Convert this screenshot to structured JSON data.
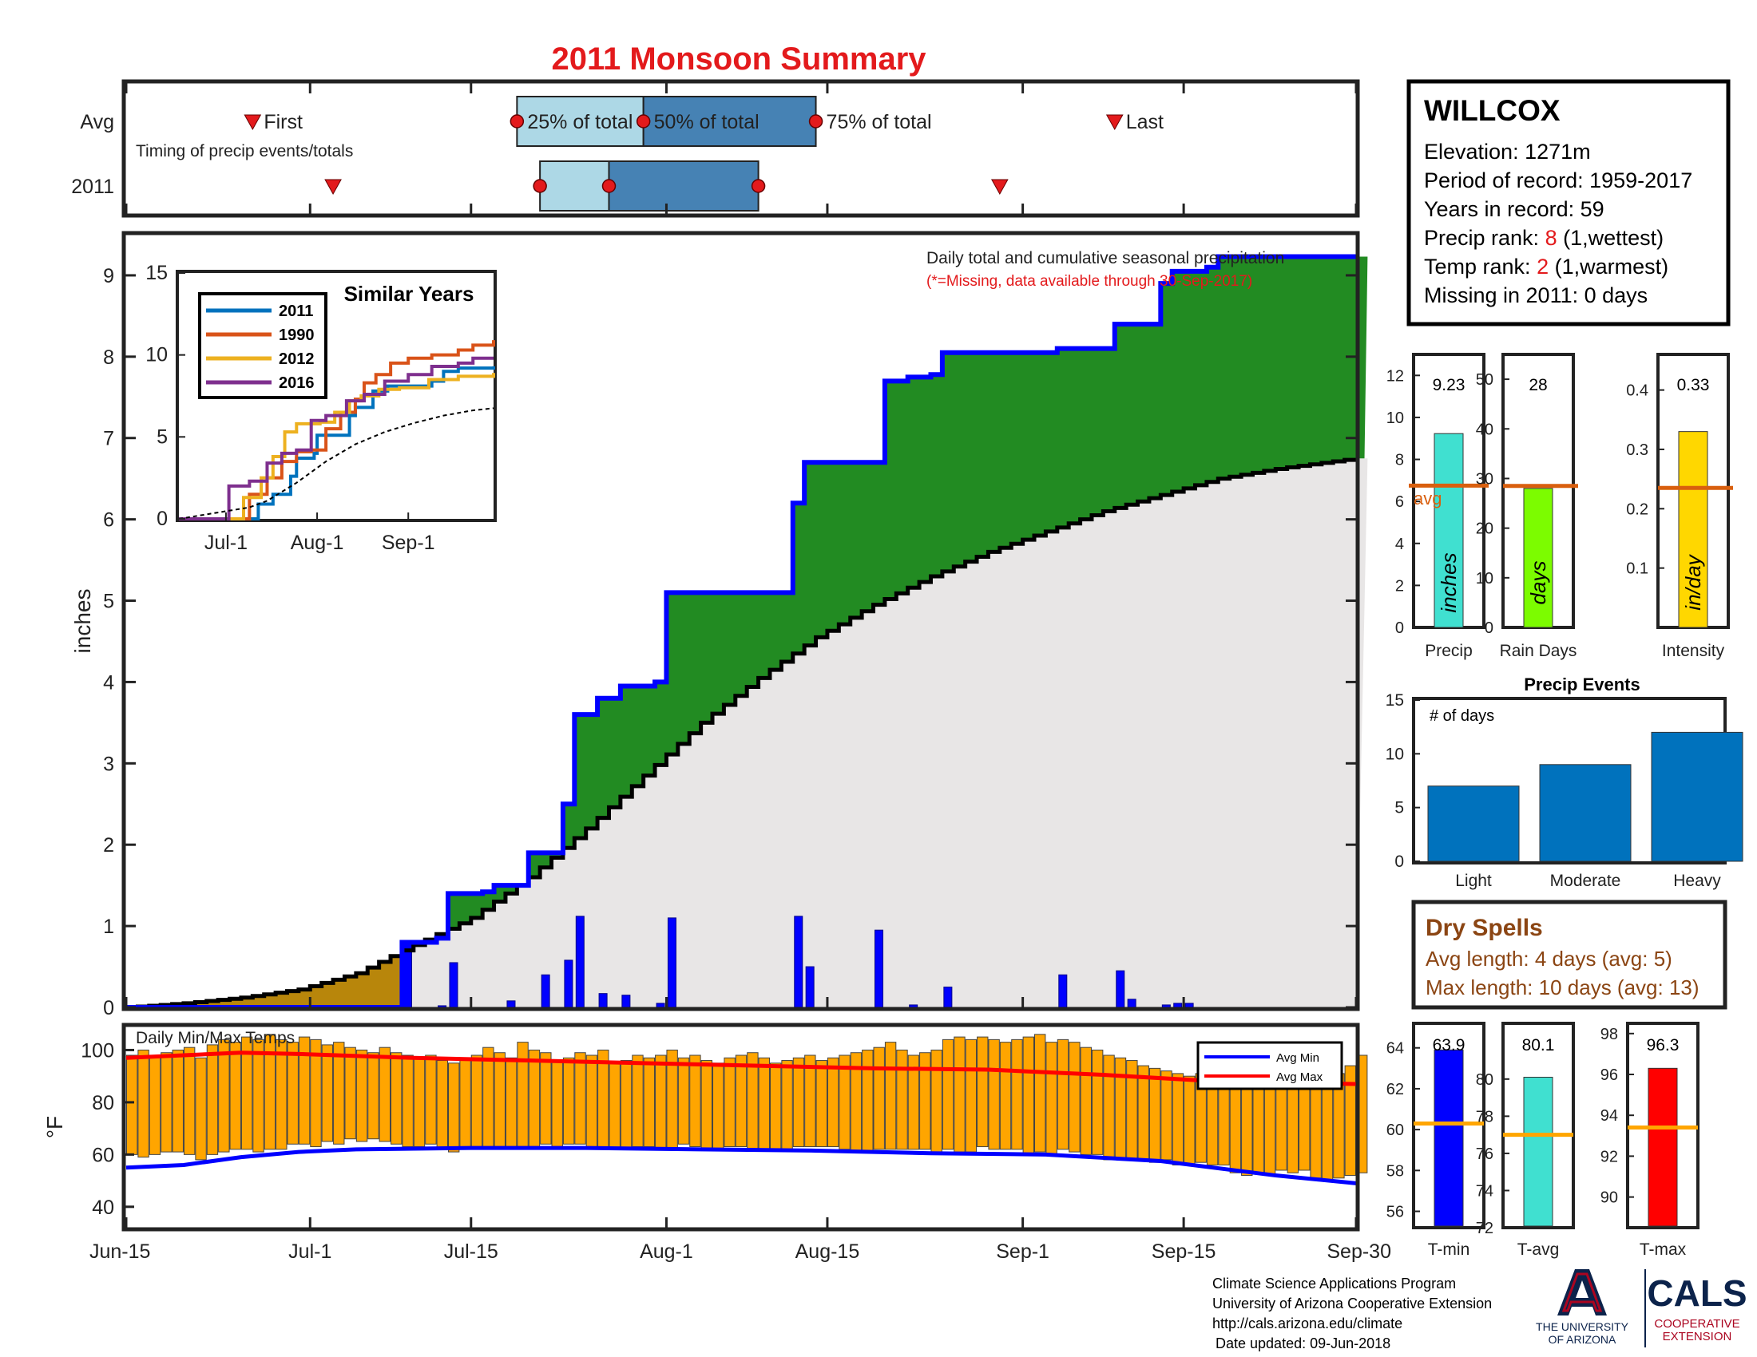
{
  "header": {
    "title": "2011 Monsoon Summary"
  },
  "timing_panel": {
    "row_labels": [
      "Avg",
      "2011"
    ],
    "caption": "Timing of precip events/totals",
    "avg_labels": {
      "first": "First",
      "p25": "25% of total",
      "p50": "50% of total",
      "p75": "75% of total",
      "last": "Last"
    },
    "avg_days": {
      "first": 11,
      "p25": 34,
      "p50": 45,
      "p75": 60,
      "last": 86
    },
    "year_days": {
      "first": 18,
      "p25": 36,
      "p50": 42,
      "p75": 55,
      "last": 76
    }
  },
  "station": {
    "name": "WILLCOX",
    "elevation": "Elevation: 1271m",
    "period": "Period of record: 1959-2017",
    "years": "Years in record: 59",
    "precip_rank_label": "Precip rank: ",
    "precip_rank_value": "8",
    "precip_rank_note": " (1,wettest)",
    "temp_rank_label": "Temp rank: ",
    "temp_rank_value": "2",
    "temp_rank_note": " (1,warmest)",
    "missing": "Missing in 2011: 0 days"
  },
  "main_chart": {
    "ylabel": "inches",
    "subtitle": "Daily total and cumulative seasonal precipitation",
    "note": "(*=Missing, data available through 30-Sep-2017)"
  },
  "inset": {
    "title": "Similar Years"
  },
  "mini_bars": [
    {
      "label": "Precip",
      "unit": "inches",
      "value": "9.23"
    },
    {
      "label": "Rain Days",
      "unit": "days",
      "value": "28"
    },
    {
      "label": "Intensity",
      "unit": "in/day",
      "value": "0.33"
    }
  ],
  "avg_marker_label": "avg",
  "precip_events": {
    "title": "Precip Events",
    "ylabel": "# of days"
  },
  "dry_spells": {
    "title": "Dry Spells",
    "avg": "Avg length: 4 days (avg: 5)",
    "max": "Max length: 10 days (avg: 13)"
  },
  "temp_chart": {
    "title": "Daily Min/Max Temps",
    "ylabel": "°F"
  },
  "temp_bars": [
    {
      "label": "T-min",
      "value": "63.9"
    },
    {
      "label": "T-avg",
      "value": "80.1"
    },
    {
      "label": "T-max",
      "value": "96.3"
    }
  ],
  "footer": {
    "line1": "Climate Science Applications Program",
    "line2": "University of Arizona Cooperative Extension",
    "line3": "http://cals.arizona.edu/climate",
    "line4": "Date updated: 09-Jun-2018"
  },
  "logos": {
    "ua_line1": "THE UNIVERSITY",
    "ua_line2": "OF ARIZONA",
    "cals": "CALS",
    "cals_line1": "COOPERATIVE",
    "cals_line2": "EXTENSION"
  },
  "colors": {
    "title_red": "#e31a1c",
    "cumulative_2011": "#0000ff",
    "above_avg_fill": "#228b22",
    "avg_fill": "#e8e6e6",
    "early_fill": "#b8860b",
    "daily_bar": "#0000ff",
    "temp_bar": "#ffa500",
    "avg_max_line": "#ff0000",
    "avg_min_line": "#0000ff",
    "avg_line_orange": "#d95f0e",
    "events_bar": "#0072bd",
    "dry_spells_text": "#8b4513"
  },
  "chart_data": [
    {
      "type": "area",
      "title": "",
      "subtitle": "Daily total and cumulative seasonal precipitation",
      "xlabel": "",
      "ylabel": "inches",
      "x_ticks": [
        "Jun-15",
        "Jul-1",
        "Jul-15",
        "Aug-1",
        "Aug-15",
        "Sep-1",
        "Sep-15",
        "Sep-30"
      ],
      "x_tick_days": [
        0,
        16,
        30,
        47,
        61,
        78,
        92,
        107
      ],
      "xlim_days": [
        0,
        107
      ],
      "ylim": [
        0,
        9.5
      ],
      "y_ticks": [
        0,
        1,
        2,
        3,
        4,
        5,
        6,
        7,
        8,
        9
      ],
      "cumulative_2011": [
        [
          0,
          0
        ],
        [
          23,
          0
        ],
        [
          24,
          0.8
        ],
        [
          27,
          0.85
        ],
        [
          28,
          1.4
        ],
        [
          31,
          1.42
        ],
        [
          32,
          1.5
        ],
        [
          35,
          1.9
        ],
        [
          38,
          2.5
        ],
        [
          39,
          3.6
        ],
        [
          41,
          3.8
        ],
        [
          43,
          3.95
        ],
        [
          46,
          4.0
        ],
        [
          47,
          5.1
        ],
        [
          52,
          5.1
        ],
        [
          57,
          5.1
        ],
        [
          58,
          6.2
        ],
        [
          59,
          6.7
        ],
        [
          65,
          6.7
        ],
        [
          66,
          7.7
        ],
        [
          68,
          7.75
        ],
        [
          70,
          7.78
        ],
        [
          71,
          8.05
        ],
        [
          81,
          8.1
        ],
        [
          86,
          8.4
        ],
        [
          90,
          8.9
        ],
        [
          91,
          9.05
        ],
        [
          94,
          9.1
        ],
        [
          95,
          9.23
        ],
        [
          107,
          9.23
        ]
      ],
      "cumulative_avg": [
        [
          0,
          0
        ],
        [
          5,
          0.05
        ],
        [
          10,
          0.12
        ],
        [
          15,
          0.22
        ],
        [
          20,
          0.42
        ],
        [
          24,
          0.7
        ],
        [
          30,
          1.1
        ],
        [
          35,
          1.6
        ],
        [
          40,
          2.2
        ],
        [
          45,
          2.85
        ],
        [
          50,
          3.5
        ],
        [
          55,
          4.05
        ],
        [
          60,
          4.55
        ],
        [
          65,
          4.95
        ],
        [
          70,
          5.3
        ],
        [
          75,
          5.6
        ],
        [
          80,
          5.85
        ],
        [
          85,
          6.1
        ],
        [
          90,
          6.3
        ],
        [
          95,
          6.5
        ],
        [
          100,
          6.62
        ],
        [
          107,
          6.75
        ]
      ],
      "daily_2011": [
        [
          24,
          0.8
        ],
        [
          27,
          0.02
        ],
        [
          28,
          0.55
        ],
        [
          33,
          0.08
        ],
        [
          36,
          0.4
        ],
        [
          38,
          0.58
        ],
        [
          39,
          1.12
        ],
        [
          41,
          0.17
        ],
        [
          43,
          0.15
        ],
        [
          46,
          0.05
        ],
        [
          47,
          1.1
        ],
        [
          58,
          1.12
        ],
        [
          59,
          0.5
        ],
        [
          65,
          0.95
        ],
        [
          68,
          0.03
        ],
        [
          71,
          0.25
        ],
        [
          81,
          0.4
        ],
        [
          86,
          0.45
        ],
        [
          87,
          0.1
        ],
        [
          90,
          0.03
        ],
        [
          91,
          0.05
        ],
        [
          92,
          0.05
        ]
      ]
    },
    {
      "type": "line",
      "title": "Similar Years",
      "x_ticks": [
        "Jul-1",
        "Aug-1",
        "Sep-1"
      ],
      "x_tick_days": [
        16,
        47,
        78
      ],
      "xlim_days": [
        0,
        107
      ],
      "ylim": [
        0,
        15
      ],
      "y_ticks": [
        0,
        5,
        10,
        15
      ],
      "series": [
        {
          "name": "2011",
          "color": "#0072bd",
          "points": [
            [
              0,
              0
            ],
            [
              23,
              0
            ],
            [
              27,
              0.9
            ],
            [
              32,
              1.5
            ],
            [
              38,
              2.6
            ],
            [
              40,
              3.7
            ],
            [
              46,
              4.0
            ],
            [
              47,
              5.1
            ],
            [
              58,
              6.3
            ],
            [
              60,
              6.8
            ],
            [
              66,
              7.8
            ],
            [
              71,
              8.1
            ],
            [
              86,
              8.4
            ],
            [
              90,
              9.0
            ],
            [
              95,
              9.2
            ],
            [
              107,
              9.3
            ]
          ]
        },
        {
          "name": "1990",
          "color": "#d95319",
          "points": [
            [
              0,
              0
            ],
            [
              20,
              0
            ],
            [
              24,
              1.5
            ],
            [
              30,
              2.5
            ],
            [
              35,
              3.5
            ],
            [
              40,
              4.1
            ],
            [
              45,
              4.2
            ],
            [
              50,
              5.5
            ],
            [
              55,
              6.5
            ],
            [
              60,
              7.3
            ],
            [
              63,
              8.3
            ],
            [
              67,
              8.8
            ],
            [
              72,
              9.5
            ],
            [
              78,
              9.8
            ],
            [
              86,
              10.0
            ],
            [
              95,
              10.3
            ],
            [
              100,
              10.6
            ],
            [
              107,
              10.9
            ]
          ]
        },
        {
          "name": "2012",
          "color": "#edb120",
          "points": [
            [
              0,
              0
            ],
            [
              19,
              0
            ],
            [
              22,
              1.3
            ],
            [
              28,
              2.5
            ],
            [
              32,
              3.8
            ],
            [
              36,
              5.3
            ],
            [
              40,
              5.8
            ],
            [
              48,
              5.9
            ],
            [
              53,
              6.5
            ],
            [
              58,
              7.2
            ],
            [
              62,
              7.5
            ],
            [
              68,
              7.9
            ],
            [
              75,
              8.0
            ],
            [
              85,
              8.5
            ],
            [
              95,
              8.7
            ],
            [
              107,
              8.9
            ]
          ]
        },
        {
          "name": "2016",
          "color": "#7e2f8e",
          "points": [
            [
              0,
              0
            ],
            [
              15,
              0
            ],
            [
              17,
              2.0
            ],
            [
              24,
              2.3
            ],
            [
              30,
              3.4
            ],
            [
              35,
              4.0
            ],
            [
              40,
              4.2
            ],
            [
              45,
              6.0
            ],
            [
              50,
              6.3
            ],
            [
              57,
              7.2
            ],
            [
              63,
              7.6
            ],
            [
              70,
              8.4
            ],
            [
              78,
              8.8
            ],
            [
              86,
              9.3
            ],
            [
              95,
              9.5
            ],
            [
              100,
              9.8
            ],
            [
              107,
              9.8
            ]
          ]
        },
        {
          "points": [
            [
              0,
              0
            ],
            [
              24,
              0.7
            ],
            [
              30,
              1.1
            ],
            [
              40,
              2.2
            ],
            [
              50,
              3.5
            ],
            [
              60,
              4.55
            ],
            [
              70,
              5.3
            ],
            [
              80,
              5.85
            ],
            [
              90,
              6.3
            ],
            [
              100,
              6.62
            ],
            [
              107,
              6.75
            ]
          ],
          "color": "#000000",
          "dash": true
        }
      ]
    },
    {
      "type": "bar",
      "title": "",
      "categories": [
        "Precip",
        "Rain Days",
        "Intensity"
      ],
      "values": [
        9.23,
        28,
        0.33
      ],
      "averages": [
        6.75,
        28.5,
        0.235
      ],
      "ylims": [
        [
          0,
          13
        ],
        [
          0,
          55
        ],
        [
          0,
          0.46
        ]
      ],
      "y_ticks": [
        [
          0,
          2,
          4,
          6,
          8,
          10,
          12
        ],
        [
          0,
          10,
          20,
          30,
          40,
          50
        ],
        [
          0.1,
          0.2,
          0.3,
          0.4
        ]
      ],
      "colors": [
        "#40e0d0",
        "#7cfc00",
        "#ffd700"
      ]
    },
    {
      "type": "bar",
      "title": "Precip Events",
      "ylabel": "# of days",
      "categories": [
        "Light",
        "Moderate",
        "Heavy"
      ],
      "values": [
        7,
        9,
        12
      ],
      "ylim": [
        0,
        15
      ],
      "y_ticks": [
        0,
        5,
        10,
        15
      ]
    },
    {
      "type": "bar",
      "title": "Daily Min/Max Temps",
      "ylabel": "°F",
      "x_ticks": [
        "Jun-15",
        "Jul-1",
        "Jul-15",
        "Aug-1",
        "Aug-15",
        "Sep-1",
        "Sep-15",
        "Sep-30"
      ],
      "ylim": [
        32,
        109
      ],
      "y_ticks": [
        40,
        60,
        80,
        100
      ],
      "legend": [
        "Avg Min",
        "Avg Max"
      ],
      "legend_position": "top-right",
      "daily_min": [
        60,
        59,
        60,
        61,
        61,
        60,
        58,
        60,
        61,
        62,
        62,
        61,
        62,
        62,
        64,
        64,
        63,
        65,
        64,
        66,
        65,
        66,
        65,
        64,
        63,
        63,
        64,
        62,
        61,
        62,
        62,
        63,
        63,
        62,
        62,
        63,
        64,
        63,
        64,
        64,
        63,
        63,
        62,
        62,
        63,
        63,
        62,
        62,
        64,
        63,
        62,
        62,
        63,
        63,
        62,
        62,
        62,
        62,
        63,
        63,
        63,
        63,
        62,
        61,
        61,
        62,
        62,
        62,
        62,
        62,
        61,
        62,
        61,
        61,
        63,
        62,
        62,
        62,
        60,
        61,
        60,
        62,
        61,
        60,
        60,
        58,
        58,
        58,
        58,
        57,
        58,
        56,
        56,
        57,
        56,
        56,
        53,
        52,
        53,
        52,
        54,
        53,
        54,
        51,
        50,
        51,
        52,
        53
      ],
      "daily_max": [
        98,
        100,
        98,
        99,
        100,
        101,
        97,
        102,
        104,
        103,
        105,
        104,
        106,
        104,
        103,
        105,
        104,
        102,
        103,
        101,
        100,
        99,
        101,
        99,
        98,
        97,
        98,
        96,
        95,
        97,
        98,
        101,
        99,
        97,
        103,
        100,
        99,
        96,
        97,
        99,
        98,
        100,
        95,
        96,
        98,
        97,
        98,
        100,
        97,
        98,
        96,
        95,
        97,
        98,
        99,
        97,
        95,
        96,
        97,
        98,
        96,
        97,
        98,
        99,
        100,
        101,
        103,
        100,
        98,
        99,
        100,
        104,
        105,
        104,
        105,
        104,
        103,
        104,
        105,
        106,
        103,
        104,
        103,
        101,
        100,
        98,
        97,
        96,
        94,
        93,
        92,
        91,
        90,
        91,
        89,
        88,
        87,
        88,
        89,
        87,
        86,
        88,
        90,
        86,
        85,
        91,
        94,
        98
      ],
      "avg_min": [
        [
          0,
          55
        ],
        [
          5,
          56
        ],
        [
          10,
          59
        ],
        [
          15,
          61
        ],
        [
          20,
          62
        ],
        [
          30,
          62.5
        ],
        [
          40,
          62.5
        ],
        [
          50,
          62
        ],
        [
          60,
          61.5
        ],
        [
          70,
          60.5
        ],
        [
          80,
          60
        ],
        [
          90,
          57.5
        ],
        [
          100,
          52
        ],
        [
          107,
          49
        ]
      ],
      "avg_max": [
        [
          0,
          97
        ],
        [
          5,
          98
        ],
        [
          10,
          99
        ],
        [
          15,
          98.5
        ],
        [
          25,
          97
        ],
        [
          35,
          96
        ],
        [
          45,
          95
        ],
        [
          55,
          94
        ],
        [
          65,
          93
        ],
        [
          75,
          92.5
        ],
        [
          85,
          90.5
        ],
        [
          95,
          88
        ],
        [
          107,
          87
        ]
      ]
    },
    {
      "type": "bar",
      "title": "",
      "categories": [
        "T-min",
        "T-avg",
        "T-max"
      ],
      "values": [
        63.9,
        80.1,
        96.3
      ],
      "averages": [
        60.3,
        77.0,
        93.4
      ],
      "ylims": [
        [
          55.2,
          65.2
        ],
        [
          72,
          83
        ],
        [
          88.5,
          98.5
        ]
      ],
      "y_ticks": [
        [
          56,
          58,
          60,
          62,
          64
        ],
        [
          72,
          74,
          76,
          78,
          80
        ],
        [
          90,
          92,
          94,
          96,
          98
        ]
      ],
      "colors": [
        "#0000ff",
        "#40e0d0",
        "#ff0000"
      ]
    }
  ]
}
